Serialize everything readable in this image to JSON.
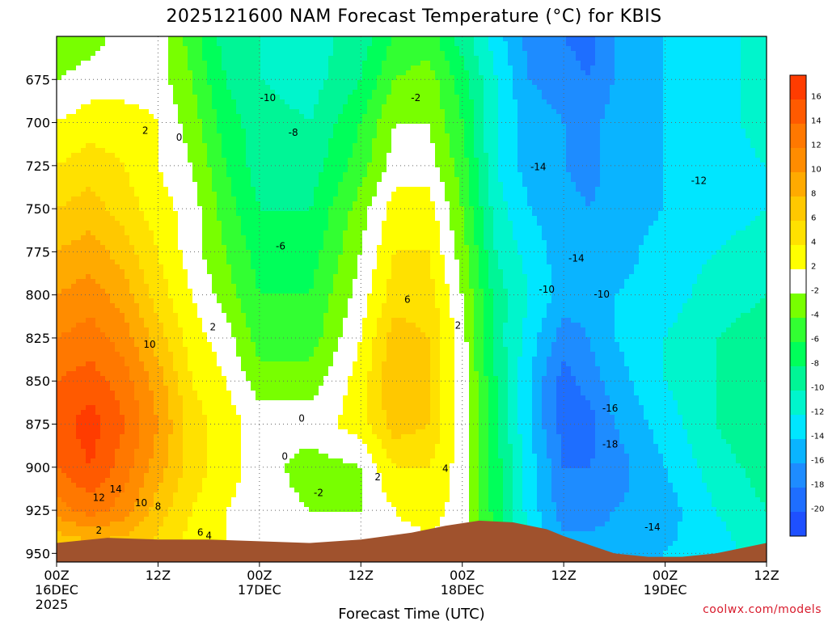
{
  "title": "2025121600 NAM Forecast Temperature (°C) for KBIS",
  "credit": "coolwx.com/models",
  "colors": {
    "terrain": "#a0522d",
    "zero_contour": "#b0306a",
    "bands": {
      "-20": "#1e50ff",
      "-18": "#1e6eff",
      "-16": "#1e8cff",
      "-14": "#0ab4ff",
      "-12": "#00e6ff",
      "-10": "#00f5cc",
      "-8": "#00f596",
      "-6": "#00ff5a",
      "-4": "#32ff32",
      "-2": "#78ff00",
      "0": "#ffffff",
      "2": "#ffff00",
      "4": "#ffe100",
      "6": "#ffc800",
      "8": "#ffaa00",
      "10": "#ff8c00",
      "12": "#ff7800",
      "14": "#ff5a00",
      "16": "#ff3c00"
    }
  },
  "chart_data": {
    "type": "heatmap",
    "title": "2025121600 NAM Forecast Temperature (°C) for KBIS",
    "xlabel": "Forecast Time (UTC)",
    "ylabel": "",
    "grid": true,
    "x_range_hours": [
      0,
      84
    ],
    "y_range_hpa": [
      650,
      955
    ],
    "y_ticks": [
      675,
      700,
      725,
      750,
      775,
      800,
      825,
      850,
      875,
      900,
      925,
      950
    ],
    "x_ticks": [
      {
        "hour": 0,
        "label": "00Z",
        "day": "16DEC",
        "year": "2025"
      },
      {
        "hour": 12,
        "label": "12Z",
        "day": "",
        "year": ""
      },
      {
        "hour": 24,
        "label": "00Z",
        "day": "17DEC",
        "year": ""
      },
      {
        "hour": 36,
        "label": "12Z",
        "day": "",
        "year": ""
      },
      {
        "hour": 48,
        "label": "00Z",
        "day": "18DEC",
        "year": ""
      },
      {
        "hour": 60,
        "label": "12Z",
        "day": "",
        "year": ""
      },
      {
        "hour": 72,
        "label": "00Z",
        "day": "19DEC",
        "year": ""
      },
      {
        "hour": 84,
        "label": "12Z",
        "day": "",
        "year": ""
      }
    ],
    "colorbar": {
      "levels": [
        16,
        14,
        12,
        10,
        8,
        6,
        4,
        2,
        -2,
        -4,
        -6,
        -8,
        -10,
        -12,
        -14,
        -16,
        -18,
        -20
      ]
    },
    "temperature_grid": {
      "hours": [
        0,
        4,
        8,
        12,
        16,
        20,
        24,
        30,
        36,
        40,
        44,
        48,
        52,
        56,
        60,
        63,
        66,
        72,
        78,
        84
      ],
      "pressures": [
        650,
        675,
        700,
        725,
        750,
        775,
        800,
        825,
        850,
        875,
        900,
        925,
        950
      ],
      "values": [
        [
          -3,
          -2,
          0,
          0,
          -4,
          -8,
          -9,
          -10,
          -8,
          -5,
          -4,
          -8,
          -12,
          -16,
          -17,
          -18,
          -15,
          -13,
          -12,
          -10
        ],
        [
          -1,
          0,
          0,
          0,
          -3,
          -7,
          -9,
          -10,
          -7,
          -3,
          -2,
          -6,
          -11,
          -15,
          -16,
          -17,
          -15,
          -13,
          -12,
          -10
        ],
        [
          1,
          2,
          2,
          1,
          -2,
          -6,
          -8,
          -9,
          -5,
          -1,
          -1,
          -5,
          -11,
          -14,
          -15,
          -16,
          -14,
          -13,
          -12,
          -10
        ],
        [
          3,
          4,
          3,
          1,
          -1,
          -5,
          -8,
          -8,
          -4,
          0,
          0,
          -4,
          -11,
          -14,
          -15,
          -16,
          -14,
          -13,
          -12,
          -11
        ],
        [
          5,
          6,
          4,
          2,
          0,
          -4,
          -7,
          -7,
          -2,
          2,
          2,
          -3,
          -10,
          -13,
          -14,
          -15,
          -14,
          -13,
          -12,
          -11
        ],
        [
          7,
          8,
          6,
          3,
          0,
          -3,
          -6,
          -6,
          -1,
          3,
          3,
          -2,
          -9,
          -12,
          -14,
          -15,
          -14,
          -12,
          -11,
          -10
        ],
        [
          9,
          10,
          8,
          4,
          1,
          -2,
          -5,
          -5,
          0,
          4,
          4,
          -1,
          -8,
          -11,
          -14,
          -14,
          -13,
          -12,
          -10,
          -9
        ],
        [
          11,
          12,
          10,
          6,
          2,
          0,
          -4,
          -4,
          1,
          6,
          5,
          0,
          -8,
          -12,
          -16,
          -15,
          -13,
          -11,
          -9,
          -8
        ],
        [
          13,
          14,
          12,
          8,
          3,
          1,
          -2,
          -2,
          2,
          7,
          5,
          0,
          -7,
          -13,
          -18,
          -16,
          -14,
          -11,
          -9,
          -7
        ],
        [
          14,
          16,
          13,
          9,
          4,
          2,
          0,
          0,
          2,
          6,
          5,
          0,
          -7,
          -13,
          -18,
          -18,
          -15,
          -12,
          -9,
          -7
        ],
        [
          13,
          15,
          12,
          8,
          4,
          2,
          0,
          -2,
          -1,
          3,
          3,
          0,
          -6,
          -12,
          -17,
          -17,
          -16,
          -13,
          -10,
          -8
        ],
        [
          10,
          12,
          10,
          6,
          3,
          1,
          0,
          -1,
          -1,
          1,
          2,
          0,
          -6,
          -12,
          -16,
          -16,
          -15,
          -14,
          -11,
          -9
        ],
        [
          4,
          5,
          5,
          4,
          2,
          1,
          0,
          0,
          0,
          0,
          0,
          0,
          -5,
          -11,
          -14,
          -14,
          -14,
          -13,
          -12,
          -10
        ]
      ]
    },
    "terrain_surface_hpa": {
      "hours": [
        0,
        6,
        12,
        18,
        24,
        30,
        36,
        42,
        46,
        50,
        54,
        58,
        60,
        63,
        66,
        70,
        74,
        78,
        84
      ],
      "values": [
        944,
        941,
        942,
        942,
        943,
        944,
        942,
        938,
        934,
        931,
        932,
        936,
        940,
        945,
        950,
        952,
        952,
        950,
        944
      ]
    },
    "contour_labels": [
      {
        "text": "-10",
        "hour": 25,
        "pressure": 686
      },
      {
        "text": "-8",
        "hour": 28,
        "pressure": 706
      },
      {
        "text": "-6",
        "hour": 26.5,
        "pressure": 772
      },
      {
        "text": "-2",
        "hour": 42.5,
        "pressure": 686
      },
      {
        "text": "2",
        "hour": 10.5,
        "pressure": 705
      },
      {
        "text": "0",
        "hour": 14.5,
        "pressure": 709
      },
      {
        "text": "10",
        "hour": 11,
        "pressure": 829
      },
      {
        "text": "2",
        "hour": 18.5,
        "pressure": 819
      },
      {
        "text": "6",
        "hour": 41.5,
        "pressure": 803
      },
      {
        "text": "2",
        "hour": 47.5,
        "pressure": 818
      },
      {
        "text": "0",
        "hour": 29,
        "pressure": 872
      },
      {
        "text": "0",
        "hour": 27,
        "pressure": 894
      },
      {
        "text": "-2",
        "hour": 31,
        "pressure": 915
      },
      {
        "text": "4",
        "hour": 46,
        "pressure": 901
      },
      {
        "text": "2",
        "hour": 38,
        "pressure": 906
      },
      {
        "text": "-14",
        "hour": 57,
        "pressure": 726
      },
      {
        "text": "-12",
        "hour": 76,
        "pressure": 734
      },
      {
        "text": "-14",
        "hour": 61.5,
        "pressure": 779
      },
      {
        "text": "-10",
        "hour": 58,
        "pressure": 797
      },
      {
        "text": "-10",
        "hour": 64.5,
        "pressure": 800
      },
      {
        "text": "-16",
        "hour": 65.5,
        "pressure": 866
      },
      {
        "text": "-18",
        "hour": 65.5,
        "pressure": 887
      },
      {
        "text": "-14",
        "hour": 70.5,
        "pressure": 935
      },
      {
        "text": "12",
        "hour": 5,
        "pressure": 918
      },
      {
        "text": "14",
        "hour": 7,
        "pressure": 913
      },
      {
        "text": "10",
        "hour": 10,
        "pressure": 921
      },
      {
        "text": "8",
        "hour": 12,
        "pressure": 923
      },
      {
        "text": "6",
        "hour": 17,
        "pressure": 938
      },
      {
        "text": "4",
        "hour": 18,
        "pressure": 940
      },
      {
        "text": "2",
        "hour": 5,
        "pressure": 937
      }
    ]
  }
}
